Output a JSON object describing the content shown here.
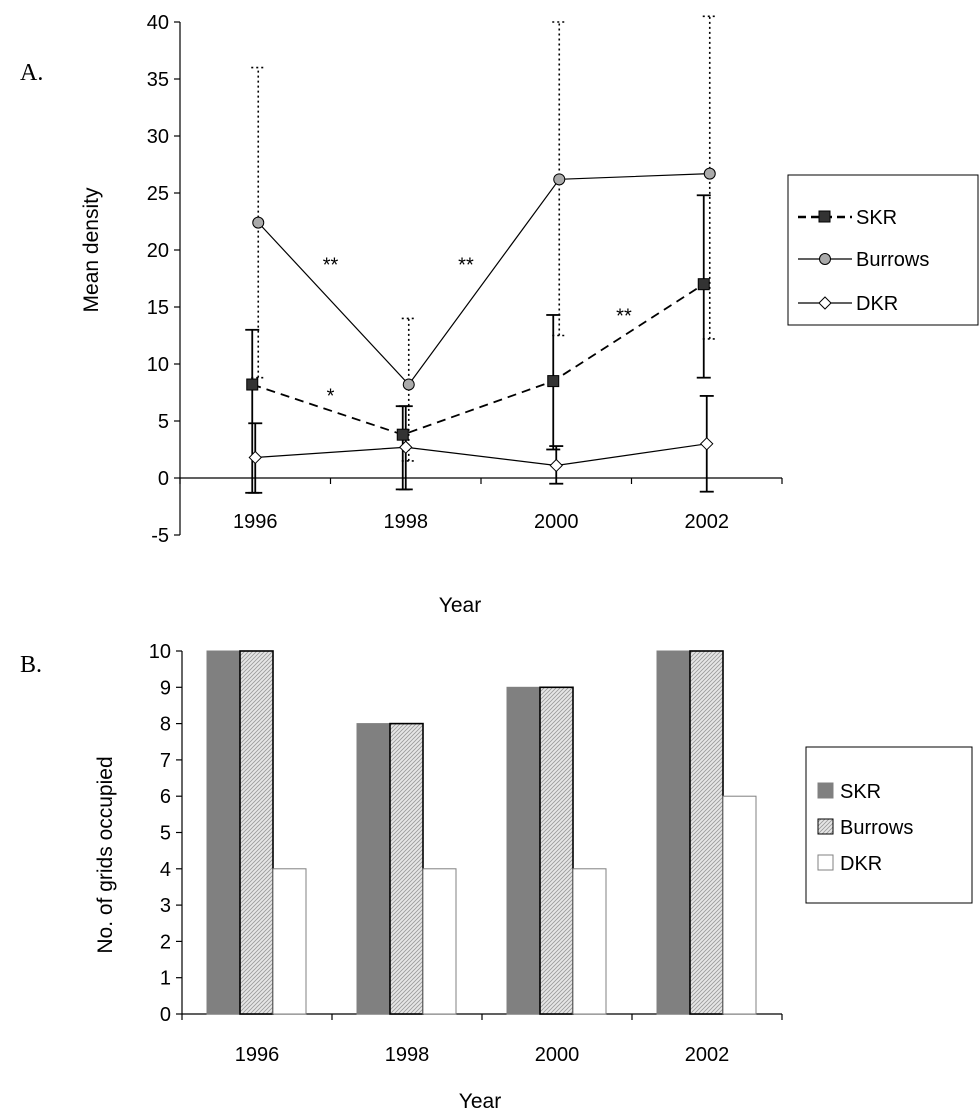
{
  "chart_data": [
    {
      "panel_label": "A.",
      "type": "line",
      "title": "",
      "xlabel": "Year",
      "ylabel": "Mean density",
      "categories": [
        "1996",
        "1998",
        "2000",
        "2002"
      ],
      "ylim": [
        -5,
        40
      ],
      "yticks": [
        "-5",
        "0",
        "5",
        "10",
        "15",
        "20",
        "25",
        "30",
        "35",
        "40"
      ],
      "legend_position": "right",
      "series": [
        {
          "name": "SKR",
          "values": [
            8.2,
            3.8,
            8.5,
            17.0
          ],
          "error_low": [
            -1.3,
            -1.0,
            2.5,
            8.8
          ],
          "error_high": [
            13.0,
            6.3,
            14.3,
            24.8
          ],
          "line": "dashed",
          "marker": "square",
          "marker_color": "#333333"
        },
        {
          "name": "Burrows",
          "values": [
            22.4,
            8.2,
            26.2,
            26.7
          ],
          "error_low": [
            8.8,
            1.5,
            12.5,
            12.2
          ],
          "error_high": [
            36.0,
            14.0,
            40.0,
            40.5
          ],
          "line": "solid",
          "marker": "circle",
          "marker_color": "#aaaaaa"
        },
        {
          "name": "DKR",
          "values": [
            1.8,
            2.7,
            1.1,
            3.0
          ],
          "error_low": [
            -1.3,
            -1.0,
            -0.5,
            -1.2
          ],
          "error_high": [
            4.8,
            6.3,
            2.8,
            7.2
          ],
          "line": "solid",
          "marker": "diamond",
          "marker_color": "#ffffff"
        }
      ],
      "annotations": [
        {
          "text": "**",
          "x": 1997.0,
          "y": 19.0
        },
        {
          "text": "**",
          "x": 1998.8,
          "y": 19.0
        },
        {
          "text": "*",
          "x": 1997.0,
          "y": 7.5
        },
        {
          "text": "**",
          "x": 2000.9,
          "y": 14.5
        }
      ]
    },
    {
      "panel_label": "B.",
      "type": "bar",
      "title": "",
      "xlabel": "Year",
      "ylabel": "No. of grids occupied",
      "categories": [
        "1996",
        "1998",
        "2000",
        "2002"
      ],
      "ylim": [
        0,
        10
      ],
      "yticks": [
        "0",
        "1",
        "2",
        "3",
        "4",
        "5",
        "6",
        "7",
        "8",
        "9",
        "10"
      ],
      "legend_position": "right",
      "series": [
        {
          "name": "SKR",
          "values": [
            10,
            8,
            9,
            10
          ],
          "fill": "#808080"
        },
        {
          "name": "Burrows",
          "values": [
            10,
            8,
            9,
            10
          ],
          "fill": "#d4d4d4"
        },
        {
          "name": "DKR",
          "values": [
            4,
            4,
            4,
            6
          ],
          "fill": "#ffffff"
        }
      ]
    }
  ]
}
